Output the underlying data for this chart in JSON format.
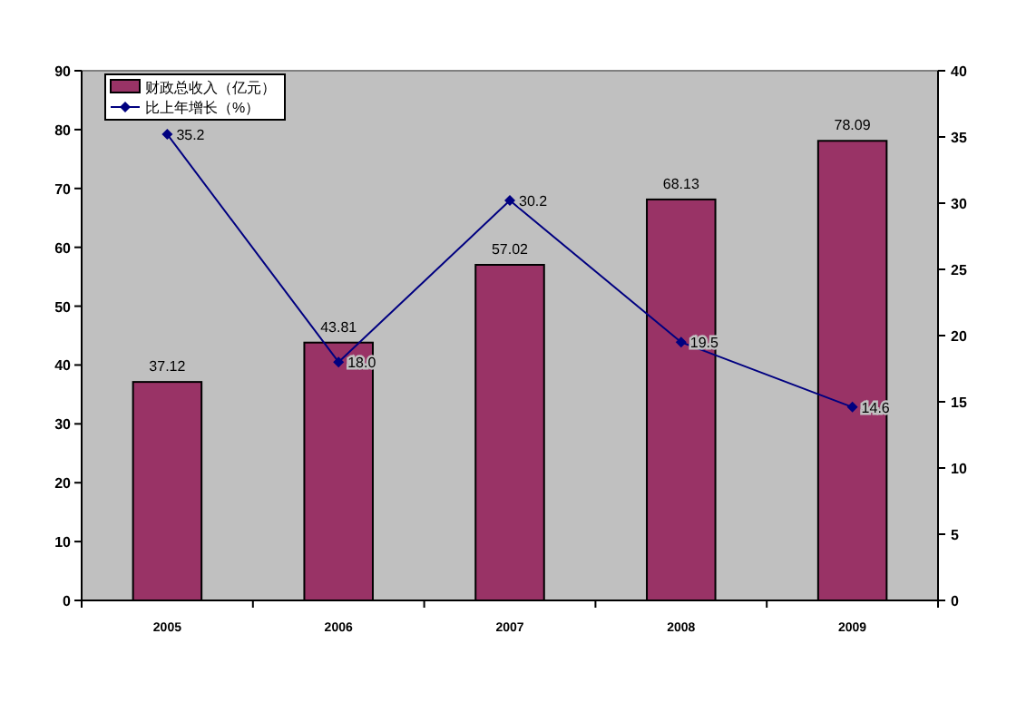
{
  "chart_data": {
    "type": "bar",
    "categories": [
      "2005",
      "2006",
      "2007",
      "2008",
      "2009"
    ],
    "series": [
      {
        "name": "财政总收入（亿元）",
        "color": "#993366",
        "values": [
          37.12,
          43.81,
          57.02,
          68.13,
          78.09
        ]
      },
      {
        "name": "比上年增长（%）",
        "type": "line",
        "axis": "y2",
        "color": "#000080",
        "marker": "diamond",
        "values": [
          35.2,
          18.0,
          30.2,
          19.5,
          14.6
        ],
        "value_labels": [
          "35.2",
          "18.0",
          "30.2",
          "19.5",
          "14.6"
        ]
      }
    ],
    "value_labels": [
      "37.12",
      "43.81",
      "57.02",
      "68.13",
      "78.09"
    ],
    "ylim": [
      0,
      90
    ],
    "yticks": [
      0,
      10,
      20,
      30,
      40,
      50,
      60,
      70,
      80,
      90
    ],
    "y2lim": [
      0,
      40
    ],
    "y2ticks": [
      0,
      5,
      10,
      15,
      20,
      25,
      30,
      35,
      40
    ],
    "grid": false,
    "legend": "top left"
  }
}
